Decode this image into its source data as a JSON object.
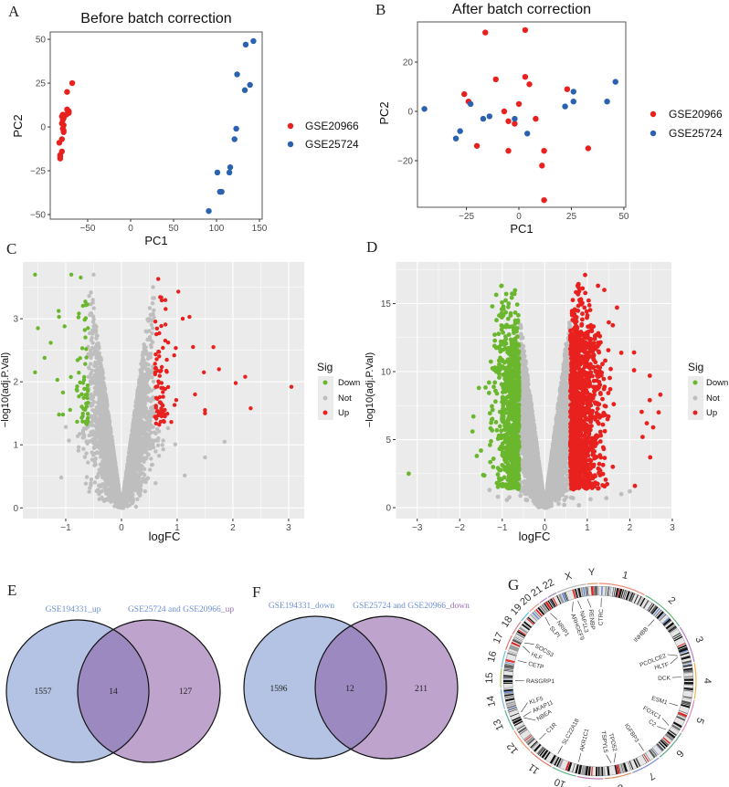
{
  "panels": {
    "A": "A",
    "B": "B",
    "C": "C",
    "D": "D",
    "E": "E",
    "F": "F",
    "G": "G"
  },
  "colors": {
    "GSE20966": "#e8211f",
    "GSE25724": "#2a62b0",
    "Down": "#6ab72d",
    "Not": "#bebebe",
    "Up": "#e8211f",
    "venn_left": "#b4c3e3",
    "venn_right": "#bea3cd",
    "venn_overlap": "#9b89bf",
    "label_blue": "#6f8fd6",
    "label_purple": "#9b6fb4"
  },
  "chart_data": [
    {
      "id": "A",
      "type": "scatter",
      "title": "Before batch correction",
      "xlabel": "PC1",
      "ylabel": "PC2",
      "xlim": [
        -93.6,
        153.2
      ],
      "ylim": [
        -52.6,
        54.2
      ],
      "xticks": [
        -50,
        0,
        50,
        100,
        150
      ],
      "yticks": [
        -50,
        -25,
        0,
        25,
        50
      ],
      "legend_position": "right",
      "series": [
        {
          "name": "GSE20966",
          "points": [
            [
              -68,
              25
            ],
            [
              -74,
              20
            ],
            [
              -74,
              10
            ],
            [
              -72,
              9
            ],
            [
              -72,
              8
            ],
            [
              -75,
              7
            ],
            [
              -79,
              7
            ],
            [
              -80,
              6
            ],
            [
              -78,
              5
            ],
            [
              -79,
              4
            ],
            [
              -80,
              2
            ],
            [
              -78,
              1
            ],
            [
              -79,
              -1
            ],
            [
              -78,
              -2
            ],
            [
              -78,
              -3
            ],
            [
              -80,
              -7
            ],
            [
              -83,
              -9
            ],
            [
              -80,
              -14
            ],
            [
              -82,
              -16
            ],
            [
              -82,
              -17
            ],
            [
              -82,
              -18
            ]
          ]
        },
        {
          "name": "GSE25724",
          "points": [
            [
              143,
              49
            ],
            [
              134,
              47
            ],
            [
              124,
              30
            ],
            [
              139,
              24
            ],
            [
              133,
              21
            ],
            [
              123,
              -1
            ],
            [
              121,
              -7
            ],
            [
              116,
              -23
            ],
            [
              115,
              -26
            ],
            [
              101,
              -26
            ],
            [
              104,
              -37
            ],
            [
              106,
              -37
            ],
            [
              91,
              -48
            ]
          ]
        }
      ]
    },
    {
      "id": "B",
      "type": "scatter",
      "title": "After batch correction",
      "xlabel": "PC1",
      "ylabel": "PC2",
      "xlim": [
        -48.3,
        50.9
      ],
      "ylim": [
        -38.9,
        36.3
      ],
      "xticks": [
        -25,
        0,
        25,
        50
      ],
      "yticks": [
        -20,
        0,
        20
      ],
      "legend_position": "right",
      "series": [
        {
          "name": "GSE20966",
          "points": [
            [
              -16,
              32
            ],
            [
              3,
              33
            ],
            [
              3,
              14
            ],
            [
              -11,
              13
            ],
            [
              5,
              11
            ],
            [
              23,
              9
            ],
            [
              -26,
              7
            ],
            [
              -24,
              4
            ],
            [
              0,
              3
            ],
            [
              -7,
              0
            ],
            [
              8,
              -3
            ],
            [
              -5,
              -4
            ],
            [
              -2,
              -5
            ],
            [
              -20,
              -14
            ],
            [
              -5,
              -16
            ],
            [
              12,
              -16
            ],
            [
              33,
              -15
            ],
            [
              11,
              -22
            ],
            [
              12,
              -36
            ]
          ]
        },
        {
          "name": "GSE25724",
          "points": [
            [
              -45,
              1
            ],
            [
              -23,
              3
            ],
            [
              -17,
              -3
            ],
            [
              -14,
              -2
            ],
            [
              -2,
              -3
            ],
            [
              -28,
              -8
            ],
            [
              -30,
              -11
            ],
            [
              4,
              -9
            ],
            [
              22,
              2
            ],
            [
              26,
              8
            ],
            [
              26,
              4
            ],
            [
              42,
              4
            ],
            [
              46,
              12
            ]
          ]
        }
      ]
    },
    {
      "id": "C",
      "type": "scatter",
      "subtype": "volcano",
      "xlabel": "logFC",
      "ylabel": "−log10(adj.P.Val)",
      "xlim": [
        -1.77,
        3.28
      ],
      "ylim": [
        -0.17,
        3.9
      ],
      "xticks": [
        -1,
        0,
        1,
        2,
        3
      ],
      "yticks": [
        0,
        1,
        2,
        3
      ],
      "legend_title": "Sig",
      "legend": [
        "Down",
        "Not",
        "Up"
      ],
      "legend_position": "right",
      "logfc_cutoff": 0.6,
      "sig_cutoff": 1.3,
      "highlighted": {
        "Down": [
          [
            -1.55,
            3.7
          ],
          [
            -0.9,
            3.7
          ],
          [
            -1.5,
            2.85
          ],
          [
            -1.55,
            2.15
          ],
          [
            -1.38,
            2.38
          ],
          [
            -1.27,
            2.62
          ],
          [
            -1.15,
            2.03
          ],
          [
            -1.12,
            1.48
          ],
          [
            -1.05,
            1.48
          ],
          [
            -1.05,
            1.83
          ],
          [
            -1.12,
            3.03
          ],
          [
            -1.02,
            2.88
          ]
        ],
        "Up": [
          [
            3.05,
            1.92
          ],
          [
            2.32,
            1.58
          ],
          [
            2.22,
            2.08
          ],
          [
            2.05,
            1.98
          ],
          [
            1.75,
            2.2
          ],
          [
            1.65,
            2.55
          ],
          [
            1.5,
            1.55
          ],
          [
            1.5,
            1.5
          ],
          [
            1.48,
            2.15
          ],
          [
            1.32,
            1.8
          ],
          [
            1.22,
            3.03
          ],
          [
            1.1,
            3.0
          ],
          [
            1.02,
            3.43
          ],
          [
            0.66,
            3.63
          ]
        ],
        "Not": [
          [
            1.85,
            1.05
          ],
          [
            -1.08,
            0.48
          ],
          [
            -0.5,
            3.7
          ],
          [
            1.5,
            0.8
          ]
        ]
      }
    },
    {
      "id": "D",
      "type": "scatter",
      "subtype": "volcano",
      "xlabel": "logFC",
      "ylabel": "−log10(adj.P.Val)",
      "xlim": [
        -3.51,
        2.98
      ],
      "ylim": [
        -0.8,
        18.05
      ],
      "xticks": [
        -3,
        -2,
        -1,
        0,
        1,
        2,
        3
      ],
      "yticks": [
        0,
        5,
        10,
        15
      ],
      "legend_title": "Sig",
      "legend": [
        "Down",
        "Not",
        "Up"
      ],
      "legend_position": "right",
      "logfc_cutoff": 0.6,
      "sig_cutoff": 1.3,
      "highlighted": {
        "Down": [
          [
            -3.2,
            2.5
          ],
          [
            -1.7,
            5.6
          ],
          [
            -1.68,
            6.7
          ],
          [
            -1.6,
            3.8
          ],
          [
            -1.55,
            8.8
          ],
          [
            -0.85,
            15
          ],
          [
            -0.97,
            14.6
          ],
          [
            -1.45,
            2.4
          ],
          [
            -1.5,
            4.2
          ]
        ],
        "Up": [
          [
            2.72,
            8.3
          ],
          [
            2.68,
            7.0
          ],
          [
            2.55,
            5.9
          ],
          [
            2.48,
            3.7
          ],
          [
            2.47,
            9.7
          ],
          [
            2.47,
            7.9
          ],
          [
            2.1,
            11.4
          ],
          [
            2.12,
            1.6
          ],
          [
            1.7,
            14.7
          ],
          [
            0.95,
            17.1
          ],
          [
            1.4,
            16
          ],
          [
            2.1,
            10.1
          ],
          [
            2.4,
            6.2
          ],
          [
            2.3,
            5.2
          ],
          [
            1.6,
            13.4
          ]
        ],
        "Not": [
          [
            2.0,
            1.2
          ],
          [
            1.8,
            1.0
          ],
          [
            -1.3,
            1.3
          ],
          [
            -1.1,
            0.8
          ],
          [
            1.45,
            0.7
          ]
        ]
      }
    }
  ],
  "venns": [
    {
      "id": "E",
      "sets": [
        {
          "name": "GSE194331",
          "suffix": "_up"
        },
        {
          "name": "GSE25724 and GSE20966",
          "suffix": "_up"
        }
      ],
      "left_only": "1557",
      "both": "14",
      "right_only": "127"
    },
    {
      "id": "F",
      "sets": [
        {
          "name": "GSE194331",
          "suffix": "_down"
        },
        {
          "name": "GSE25724 and GSE20966",
          "suffix": "_down"
        }
      ],
      "left_only": "1596",
      "both": "12",
      "right_only": "211"
    }
  ],
  "circos": {
    "chromosomes": [
      [
        "1",
        249
      ],
      [
        "2",
        242
      ],
      [
        "3",
        198
      ],
      [
        "4",
        190
      ],
      [
        "5",
        181
      ],
      [
        "6",
        171
      ],
      [
        "7",
        159
      ],
      [
        "8",
        145
      ],
      [
        "9",
        138
      ],
      [
        "10",
        134
      ],
      [
        "11",
        135
      ],
      [
        "12",
        133
      ],
      [
        "13",
        114
      ],
      [
        "14",
        107
      ],
      [
        "15",
        102
      ],
      [
        "16",
        90
      ],
      [
        "17",
        83
      ],
      [
        "18",
        80
      ],
      [
        "19",
        59
      ],
      [
        "20",
        64
      ],
      [
        "21",
        47
      ],
      [
        "22",
        51
      ],
      [
        "X",
        156
      ],
      [
        "Y",
        57
      ]
    ],
    "genes": [
      [
        "CTRC",
        "1",
        15.8
      ],
      [
        "INHBB",
        "2",
        120
      ],
      [
        "PCOLCE2",
        "3",
        140
      ],
      [
        "HLTF",
        "3",
        149
      ],
      [
        "DCK",
        "4",
        71
      ],
      [
        "ESM1",
        "5",
        54
      ],
      [
        "FOXC1",
        "6",
        1.6
      ],
      [
        "C2",
        "6",
        32
      ],
      [
        "IGFBP3",
        "7",
        46
      ],
      [
        "TPD52",
        "8",
        80
      ],
      [
        "TSPYL5",
        "8",
        97
      ],
      [
        "AKR1C1",
        "10",
        5
      ],
      [
        "SLC22A18",
        "11",
        3
      ],
      [
        "C1R",
        "12",
        7
      ],
      [
        "NBEA",
        "13",
        35
      ],
      [
        "AKAP11",
        "13",
        42
      ],
      [
        "KLF5",
        "13",
        73
      ],
      [
        "RASGRP1",
        "15",
        38
      ],
      [
        "CETP",
        "16",
        57
      ],
      [
        "HLF",
        "17",
        55
      ],
      [
        "SOCS3",
        "17",
        78
      ],
      [
        "SLPI",
        "20",
        45
      ],
      [
        "NRIP1",
        "21",
        15
      ],
      [
        "ARHGEF9",
        "X",
        63
      ],
      [
        "NAP1L3",
        "X",
        93
      ],
      [
        "RENBP",
        "X",
        153
      ]
    ]
  }
}
